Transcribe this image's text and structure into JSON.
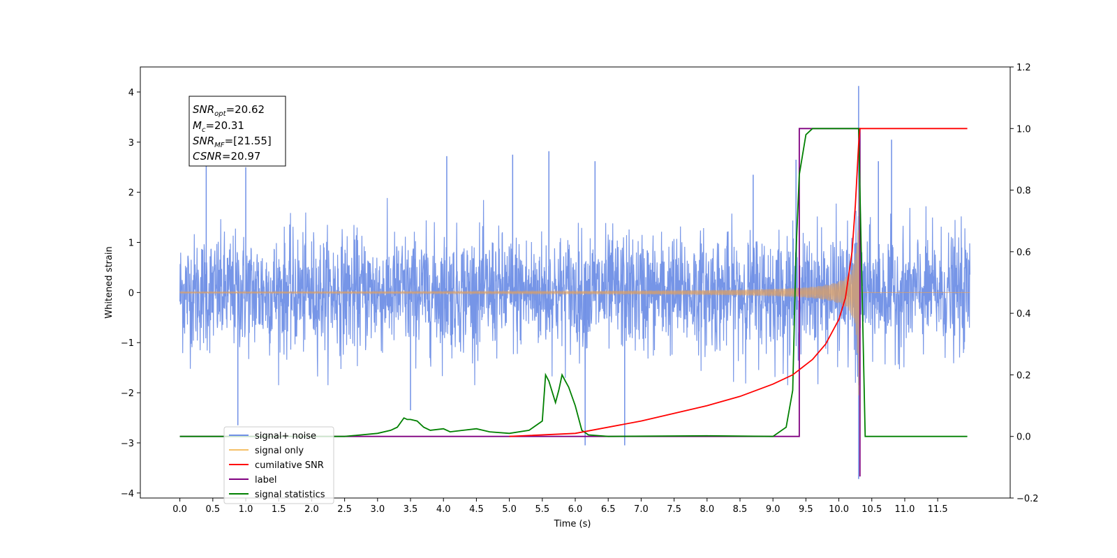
{
  "chart_data": {
    "type": "line",
    "xlabel": "Time (s)",
    "ylabel": "Whitened strain",
    "xlim": [
      -0.6,
      12.6
    ],
    "ylim": [
      -4.1,
      4.5
    ],
    "y2lim": [
      -0.2,
      1.2
    ],
    "xticks": [
      "0.0",
      "0.5",
      "1.0",
      "1.5",
      "2.0",
      "2.5",
      "3.0",
      "3.5",
      "4.0",
      "4.5",
      "5.0",
      "5.5",
      "6.0",
      "6.5",
      "7.0",
      "7.5",
      "8.0",
      "8.5",
      "9.0",
      "9.5",
      "10.0",
      "10.5",
      "11.0",
      "11.5"
    ],
    "yticks": [
      "4",
      "3",
      "2",
      "1",
      "0",
      "−1",
      "−2",
      "−3",
      "−4"
    ],
    "y2ticks": [
      "1.2",
      "1.0",
      "0.8",
      "0.6",
      "0.4",
      "0.2",
      "0.0",
      "−0.2"
    ],
    "grid": false,
    "legend_position": "lower-left",
    "colors": {
      "signal_noise": "#6f8fe6",
      "signal_only": "#e0a060",
      "cumulative_snr": "#ff0000",
      "label": "#800080",
      "signal_statistics": "#008000"
    },
    "annotation": {
      "snr_opt": {
        "sym": "SNR",
        "sub": "opt",
        "value": "=20.62"
      },
      "mc": {
        "sym": "M",
        "sub": "c",
        "value": "=20.31"
      },
      "snr_mf": {
        "sym": "SNR",
        "sub": "MF",
        "value": "=[21.55]"
      },
      "csnr": {
        "sym": "CSNR",
        "value": "=20.97"
      }
    },
    "series": [
      {
        "name": "signal+ noise",
        "axis": "left",
        "description_range": [
          -1.8,
          2.4
        ],
        "spikes": [
          [
            0.4,
            2.6
          ],
          [
            0.88,
            -2.65
          ],
          [
            1.0,
            2.5
          ],
          [
            3.5,
            -2.35
          ],
          [
            4.05,
            2.72
          ],
          [
            5.05,
            2.75
          ],
          [
            5.6,
            2.82
          ],
          [
            6.3,
            2.62
          ],
          [
            6.15,
            -3.05
          ],
          [
            6.75,
            -3.05
          ],
          [
            8.7,
            2.35
          ],
          [
            9.35,
            2.65
          ],
          [
            10.3,
            4.12
          ],
          [
            10.3,
            -3.72
          ],
          [
            10.6,
            2.62
          ],
          [
            10.8,
            3.05
          ]
        ]
      },
      {
        "name": "signal only",
        "axis": "left",
        "chirp_end": 10.32,
        "peak_amplitude": 3.7
      },
      {
        "name": "cumilative SNR",
        "axis": "right",
        "x": [
          5.0,
          6.0,
          7.0,
          8.0,
          8.5,
          9.0,
          9.3,
          9.6,
          9.8,
          10.0,
          10.1,
          10.2,
          10.25,
          10.3,
          10.32,
          11.95
        ],
        "y": [
          0.0,
          0.01,
          0.05,
          0.1,
          0.13,
          0.17,
          0.2,
          0.25,
          0.3,
          0.38,
          0.45,
          0.6,
          0.75,
          0.95,
          1.0,
          1.0
        ]
      },
      {
        "name": "label",
        "axis": "right",
        "x": [
          0.0,
          9.4,
          9.4,
          10.32,
          10.32
        ],
        "y": [
          0.0,
          0.0,
          1.0,
          1.0,
          -0.13
        ]
      },
      {
        "name": "signal statistics",
        "axis": "right",
        "x": [
          0.0,
          2.5,
          3.0,
          3.2,
          3.3,
          3.4,
          3.45,
          3.5,
          3.6,
          3.7,
          3.8,
          4.0,
          4.1,
          4.3,
          4.5,
          4.6,
          4.7,
          5.0,
          5.3,
          5.5,
          5.55,
          5.6,
          5.7,
          5.75,
          5.8,
          5.85,
          5.9,
          6.0,
          6.1,
          6.2,
          6.5,
          8.0,
          9.0,
          9.2,
          9.3,
          9.35,
          9.4,
          9.5,
          9.6,
          10.0,
          10.3,
          10.35,
          10.4,
          11.95
        ],
        "y": [
          0.0,
          0.0,
          0.01,
          0.02,
          0.03,
          0.06,
          0.055,
          0.055,
          0.05,
          0.03,
          0.02,
          0.025,
          0.015,
          0.02,
          0.025,
          0.02,
          0.015,
          0.01,
          0.02,
          0.05,
          0.2,
          0.18,
          0.11,
          0.15,
          0.2,
          0.18,
          0.16,
          0.1,
          0.02,
          0.005,
          0.0,
          0.002,
          0.0,
          0.03,
          0.15,
          0.6,
          0.85,
          0.98,
          1.0,
          1.0,
          1.0,
          0.5,
          0.0,
          0.0
        ]
      }
    ],
    "legend": [
      {
        "label": "signal+ noise",
        "color_key": "signal_noise"
      },
      {
        "label": "signal only",
        "color_key": "signal_only"
      },
      {
        "label": "cumilative SNR",
        "color_key": "cumulative_snr"
      },
      {
        "label": "label",
        "color_key": "label"
      },
      {
        "label": "signal statistics",
        "color_key": "signal_statistics"
      }
    ]
  }
}
